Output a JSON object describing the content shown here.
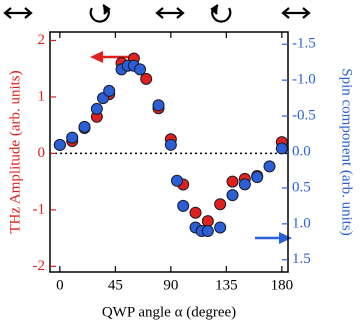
{
  "chart_data": {
    "type": "scatter",
    "xlabel": "QWP angle α (degree)",
    "ylabel": "THz Amplitude (arb. units)",
    "y2label": "Spin component (arb. units)",
    "xlim": [
      -8,
      185
    ],
    "xticks": [
      0,
      45,
      90,
      135,
      180
    ],
    "ylim": [
      -2.1,
      2.15
    ],
    "yticks": [
      -2,
      -1,
      0,
      1,
      2
    ],
    "y2lim": [
      -1.67,
      1.67
    ],
    "y2_inverted": true,
    "y2ticks": [
      -1.5,
      {
        "value": -1.0,
        "label": "-1.0"
      },
      -0.5,
      {
        "value": 0.0,
        "label": "0.0"
      },
      0.5,
      {
        "value": 1.0,
        "label": "1.0"
      },
      1.5
    ],
    "zero_line": true,
    "series": [
      {
        "name": "THz Amplitude",
        "color": "#e0201c",
        "axis": "y",
        "x": [
          0,
          10,
          20,
          30,
          40,
          50,
          60,
          70,
          80,
          90,
          100,
          110,
          120,
          130,
          140,
          150,
          160,
          180
        ],
        "values": [
          0.15,
          0.22,
          0.45,
          0.65,
          1.05,
          1.6,
          1.68,
          1.32,
          0.8,
          0.25,
          -0.55,
          -1.05,
          -1.2,
          -0.9,
          -0.5,
          -0.45,
          -0.4,
          0.2
        ]
      },
      {
        "name": "Spin component",
        "color": "#2a5fd6",
        "axis": "y2",
        "x": [
          0,
          10,
          20,
          30,
          35,
          40,
          50,
          55,
          60,
          65,
          80,
          90,
          95,
          100,
          110,
          115,
          120,
          130,
          140,
          150,
          160,
          170,
          180
        ],
        "values": [
          -0.1,
          -0.2,
          -0.35,
          -0.6,
          -0.75,
          -0.85,
          -1.15,
          -1.2,
          -1.2,
          -1.15,
          -0.65,
          -0.1,
          0.4,
          0.75,
          1.05,
          1.1,
          1.1,
          1.05,
          0.6,
          0.45,
          0.35,
          0.2,
          -0.05
        ]
      }
    ]
  }
}
